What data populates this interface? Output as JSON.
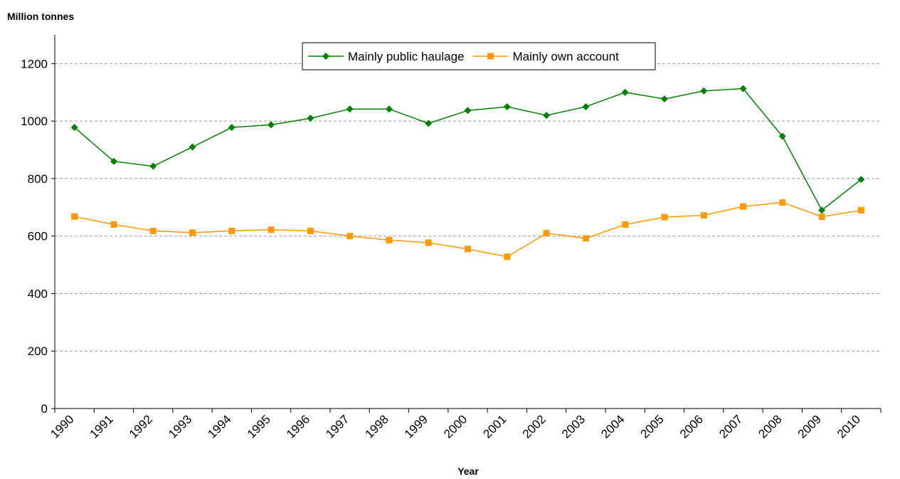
{
  "chart_data": {
    "type": "line",
    "y_axis_label": "Million tonnes",
    "x_axis_label": "Year",
    "categories": [
      "1990",
      "1991",
      "1992",
      "1993",
      "1994",
      "1995",
      "1996",
      "1997",
      "1998",
      "1999",
      "2000",
      "2001",
      "2002",
      "2003",
      "2004",
      "2005",
      "2006",
      "2007",
      "2008",
      "2009",
      "2010"
    ],
    "series": [
      {
        "name": "Mainly public haulage",
        "color": "#008000",
        "marker": "diamond",
        "values": [
          978,
          860,
          843,
          910,
          978,
          987,
          1010,
          1042,
          1042,
          992,
          1037,
          1050,
          1020,
          1050,
          1100,
          1077,
          1105,
          1113,
          947,
          690,
          797
        ]
      },
      {
        "name": "Mainly own account",
        "color": "#ff9900",
        "marker": "square",
        "values": [
          668,
          640,
          618,
          612,
          618,
          622,
          618,
          600,
          586,
          577,
          555,
          528,
          610,
          592,
          640,
          666,
          672,
          703,
          717,
          667,
          690
        ]
      }
    ],
    "ylim": [
      0,
      1300
    ],
    "yticks": [
      0,
      200,
      400,
      600,
      800,
      1000,
      1200
    ],
    "grid": true,
    "legend": "top"
  }
}
